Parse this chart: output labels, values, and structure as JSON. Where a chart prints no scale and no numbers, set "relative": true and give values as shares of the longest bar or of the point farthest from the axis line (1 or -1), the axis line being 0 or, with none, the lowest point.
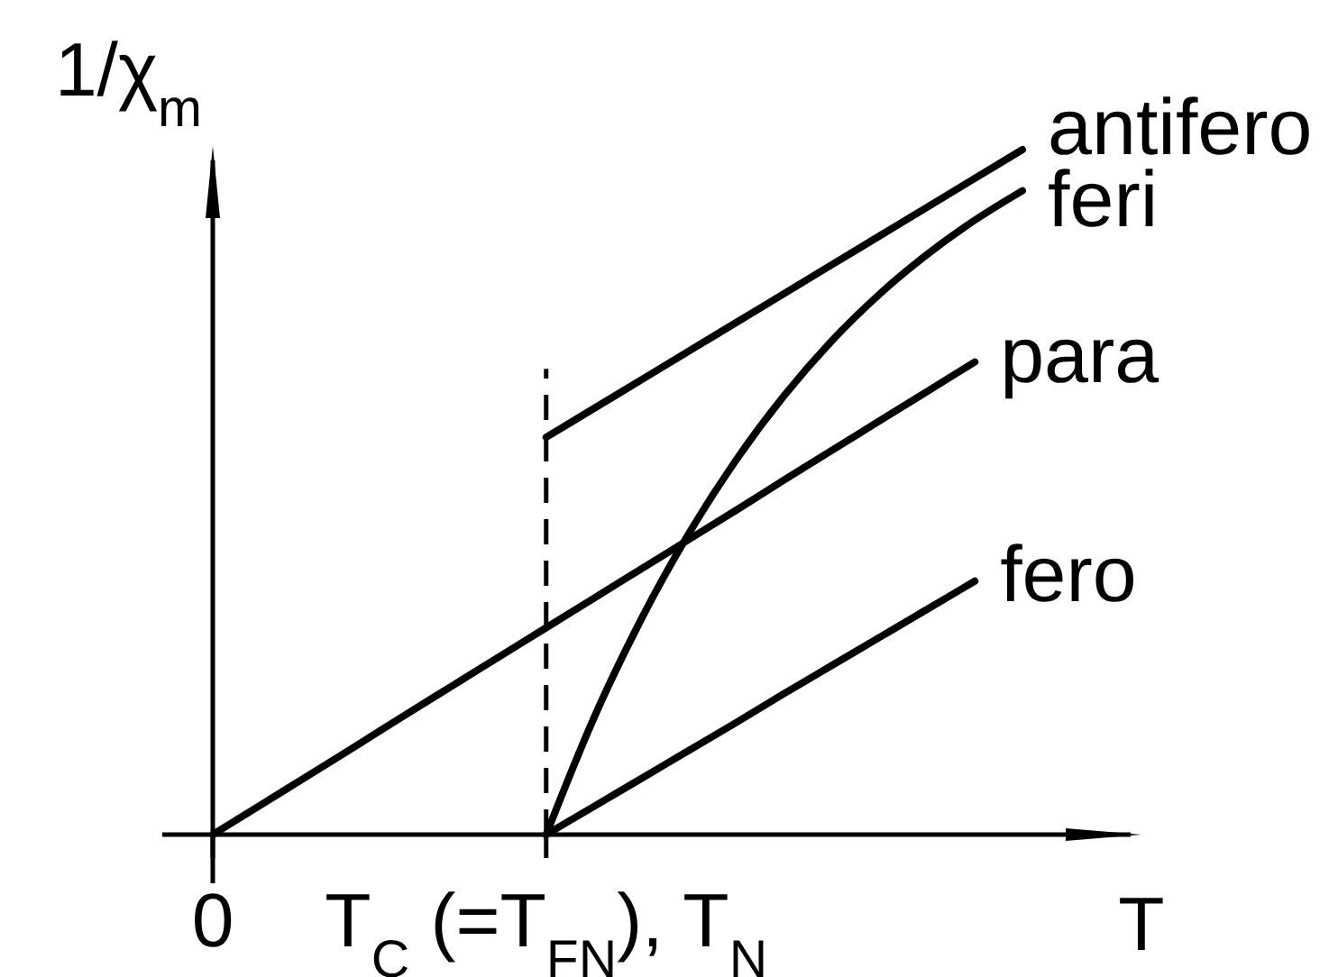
{
  "chart_data": {
    "type": "line",
    "relative": true,
    "ylabel": "1/χ$_{m}$",
    "xlabel": "T",
    "categories": [
      "0",
      null,
      null,
      null,
      null,
      null,
      null,
      "T$_{C}$ (=T$_{FN}$), T$_{N}$",
      null,
      null,
      null,
      null,
      null,
      null,
      null,
      null,
      null,
      null
    ],
    "series": [
      {
        "name": "antifero",
        "color": "#000000",
        "values": [
          null,
          null,
          null,
          null,
          null,
          null,
          null,
          0.58,
          0.622,
          0.664,
          0.706,
          0.748,
          0.79,
          0.832,
          0.874,
          0.916,
          0.958,
          1
        ]
      },
      {
        "name": "feri",
        "color": "#000000",
        "values": [
          null,
          null,
          null,
          null,
          null,
          null,
          null,
          0,
          0.17,
          0.315,
          0.44,
          0.548,
          0.641,
          0.721,
          0.789,
          0.847,
          0.897,
          0.94
        ]
      },
      {
        "name": "para",
        "color": "#000000",
        "values": [
          0,
          0.043,
          0.086,
          0.129,
          0.173,
          0.216,
          0.259,
          0.302,
          0.345,
          0.388,
          0.431,
          0.474,
          0.518,
          0.561,
          0.604,
          0.647,
          0.69,
          null
        ]
      },
      {
        "name": "fero",
        "color": "#000000",
        "values": [
          null,
          null,
          null,
          null,
          null,
          null,
          null,
          0,
          0.041,
          0.082,
          0.123,
          0.164,
          0.206,
          0.247,
          0.288,
          0.329,
          0.37,
          null
        ]
      }
    ],
    "ref_lines": [
      {
        "axis": "x",
        "value": "T$_{C}$ (=T$_{FN}$), T$_{N}$",
        "line_style": "dashed",
        "color": "#000000"
      }
    ]
  }
}
